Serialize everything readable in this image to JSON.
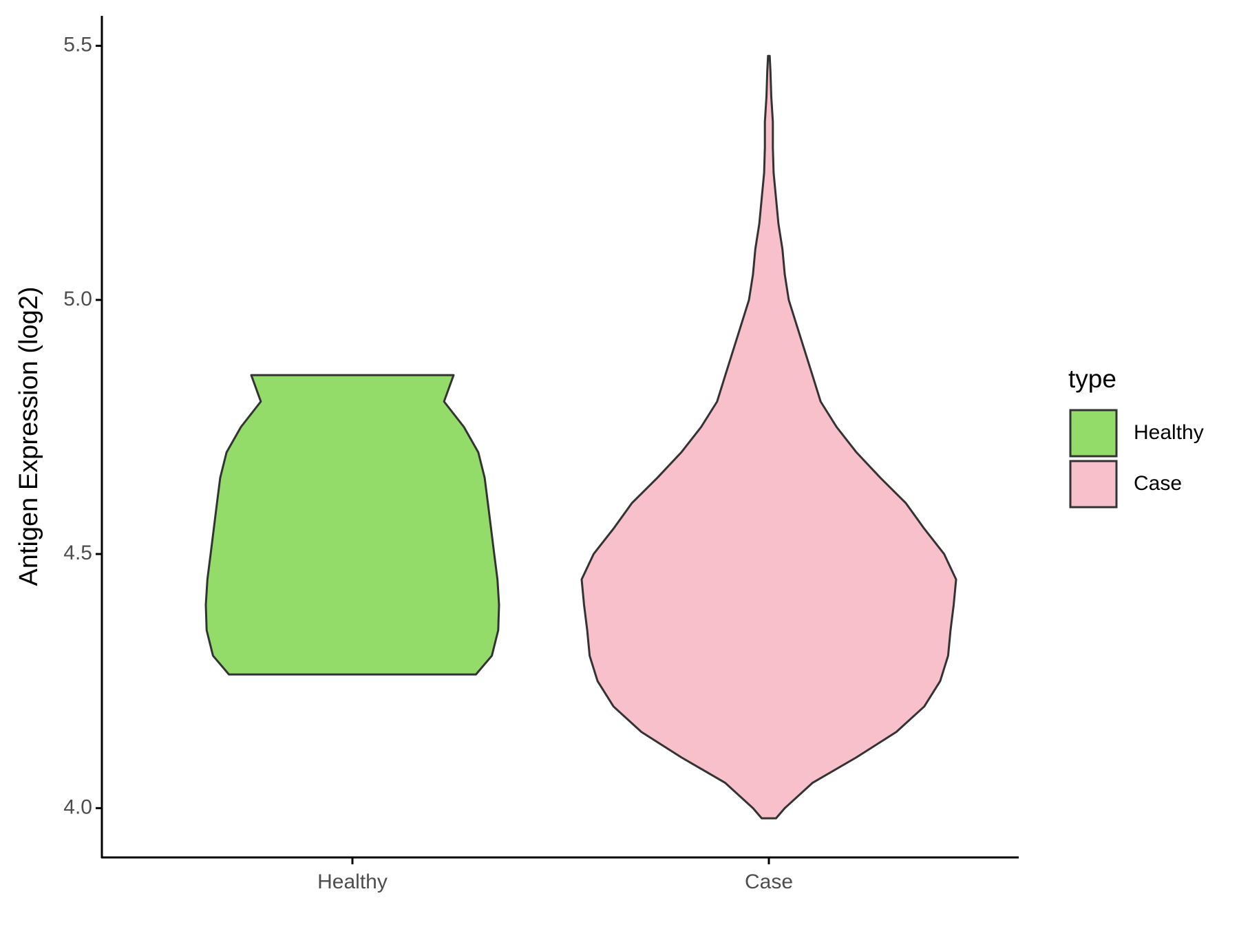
{
  "chart_data": {
    "type": "violin",
    "ylabel": "Antigen Expression (log2)",
    "categories": [
      "Healthy",
      "Case"
    ],
    "legend_title": "type",
    "legend": "right",
    "ylim": [
      3.903,
      5.559
    ],
    "yticks": [
      {
        "value": 4,
        "label": "4.0"
      },
      4.5,
      {
        "value": 5,
        "label": "5.0"
      },
      5.5
    ],
    "series": [
      {
        "name": "Healthy",
        "color": "#93dc6a",
        "y": [
          4.263,
          4.3,
          4.35,
          4.4,
          4.45,
          4.5,
          4.55,
          4.6,
          4.65,
          4.7,
          4.75,
          4.8,
          4.852
        ],
        "density": [
          155,
          175,
          183,
          184,
          182,
          178,
          174,
          170,
          166,
          158,
          140,
          115,
          127
        ]
      },
      {
        "name": "Case",
        "color": "#f8c0cb",
        "y": [
          3.98,
          4.0,
          4.05,
          4.1,
          4.15,
          4.2,
          4.25,
          4.3,
          4.35,
          4.4,
          4.45,
          4.5,
          4.55,
          4.6,
          4.65,
          4.7,
          4.75,
          4.8,
          4.85,
          4.9,
          4.95,
          5.0,
          5.05,
          5.1,
          5.15,
          5.2,
          5.25,
          5.3,
          5.35,
          5.4,
          5.45,
          5.48
        ],
        "density": [
          9,
          20,
          55,
          110,
          160,
          195,
          215,
          225,
          228,
          232,
          235,
          220,
          195,
          172,
          140,
          110,
          85,
          65,
          55,
          45,
          35,
          25,
          20,
          17,
          12,
          9,
          6,
          5,
          5,
          3,
          2,
          1
        ]
      }
    ]
  }
}
